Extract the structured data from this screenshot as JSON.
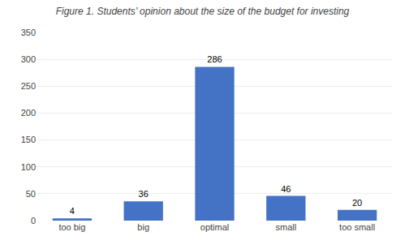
{
  "chart_data": {
    "type": "bar",
    "title": "Figure 1. Students’ opinion about the size of the budget for investing",
    "categories": [
      "too big",
      "big",
      "optimal",
      "small",
      "too small"
    ],
    "values": [
      4,
      36,
      286,
      46,
      20
    ],
    "color": "#4472C4",
    "ylim": [
      0,
      350
    ],
    "yticks": [
      0,
      50,
      100,
      150,
      200,
      250,
      300,
      350
    ],
    "grid": true,
    "data_labels": true
  }
}
